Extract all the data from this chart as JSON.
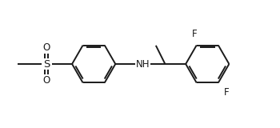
{
  "bg_color": "#ffffff",
  "line_color": "#1a1a1a",
  "text_color": "#1a1a1a",
  "label_NH": "NH",
  "label_S": "S",
  "label_O_top": "O",
  "label_O_bot": "O",
  "label_F1": "F",
  "label_F2": "F",
  "line_width": 1.4,
  "font_size": 8.5,
  "figsize": [
    3.5,
    1.6
  ],
  "dpi": 100,
  "xlim": [
    0,
    10.5
  ],
  "ylim": [
    0,
    4.8
  ]
}
